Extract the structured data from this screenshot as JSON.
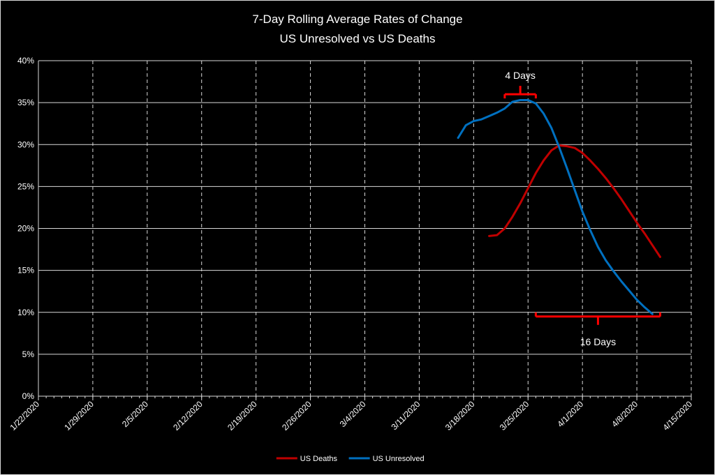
{
  "chart_data": {
    "type": "line",
    "title_lines": [
      "7-Day Rolling Average Rates of Change",
      "US Unresolved vs US Deaths"
    ],
    "xlabel": "",
    "ylabel": "",
    "ylim": [
      0,
      40
    ],
    "yticks": [
      0,
      5,
      10,
      15,
      20,
      25,
      30,
      35,
      40
    ],
    "ytick_labels": [
      "0%",
      "5%",
      "10%",
      "15%",
      "20%",
      "25%",
      "30%",
      "35%",
      "40%"
    ],
    "x_start": "1/22/2020",
    "x_end": "4/15/2020",
    "xtick_labels": [
      "1/22/2020",
      "1/29/2020",
      "2/5/2020",
      "2/12/2020",
      "2/19/2020",
      "2/26/2020",
      "3/4/2020",
      "3/11/2020",
      "3/18/2020",
      "3/25/2020",
      "4/1/2020",
      "4/8/2020",
      "4/15/2020"
    ],
    "grid": true,
    "legend_position": "bottom",
    "series": [
      {
        "name": "US Deaths",
        "color": "#c00000",
        "points": [
          [
            "3/20/2020",
            19.1
          ],
          [
            "3/21/2020",
            19.2
          ],
          [
            "3/22/2020",
            20.0
          ],
          [
            "3/23/2020",
            21.4
          ],
          [
            "3/24/2020",
            23.0
          ],
          [
            "3/25/2020",
            24.8
          ],
          [
            "3/26/2020",
            26.6
          ],
          [
            "3/27/2020",
            28.1
          ],
          [
            "3/28/2020",
            29.3
          ],
          [
            "3/29/2020",
            29.9
          ],
          [
            "3/30/2020",
            29.8
          ],
          [
            "3/31/2020",
            29.6
          ],
          [
            "4/1/2020",
            29.0
          ],
          [
            "4/2/2020",
            28.1
          ],
          [
            "4/3/2020",
            27.1
          ],
          [
            "4/4/2020",
            26.0
          ],
          [
            "4/5/2020",
            24.8
          ],
          [
            "4/6/2020",
            23.5
          ],
          [
            "4/7/2020",
            22.1
          ],
          [
            "4/8/2020",
            20.7
          ],
          [
            "4/9/2020",
            19.4
          ],
          [
            "4/10/2020",
            18.0
          ],
          [
            "4/11/2020",
            16.6
          ]
        ]
      },
      {
        "name": "US Unresolved",
        "color": "#0070c0",
        "points": [
          [
            "3/16/2020",
            30.8
          ],
          [
            "3/17/2020",
            32.3
          ],
          [
            "3/18/2020",
            32.8
          ],
          [
            "3/19/2020",
            33.0
          ],
          [
            "3/20/2020",
            33.4
          ],
          [
            "3/21/2020",
            33.8
          ],
          [
            "3/22/2020",
            34.3
          ],
          [
            "3/23/2020",
            35.1
          ],
          [
            "3/24/2020",
            35.3
          ],
          [
            "3/25/2020",
            35.3
          ],
          [
            "3/26/2020",
            34.9
          ],
          [
            "3/27/2020",
            33.7
          ],
          [
            "3/28/2020",
            32.0
          ],
          [
            "3/29/2020",
            29.7
          ],
          [
            "3/30/2020",
            27.2
          ],
          [
            "3/31/2020",
            24.6
          ],
          [
            "4/1/2020",
            22.0
          ],
          [
            "4/2/2020",
            19.8
          ],
          [
            "4/3/2020",
            17.8
          ],
          [
            "4/4/2020",
            16.2
          ],
          [
            "4/5/2020",
            14.9
          ],
          [
            "4/6/2020",
            13.7
          ],
          [
            "4/7/2020",
            12.6
          ],
          [
            "4/8/2020",
            11.5
          ],
          [
            "4/9/2020",
            10.6
          ],
          [
            "4/10/2020",
            9.8
          ]
        ]
      }
    ],
    "annotations": [
      {
        "label": "4 Days",
        "from": "3/22/2020",
        "to": "3/26/2020",
        "level": 36.0,
        "position": "above"
      },
      {
        "label": "16 Days",
        "from": "3/26/2020",
        "to": "4/11/2020",
        "level": 9.5,
        "position": "below"
      }
    ]
  }
}
